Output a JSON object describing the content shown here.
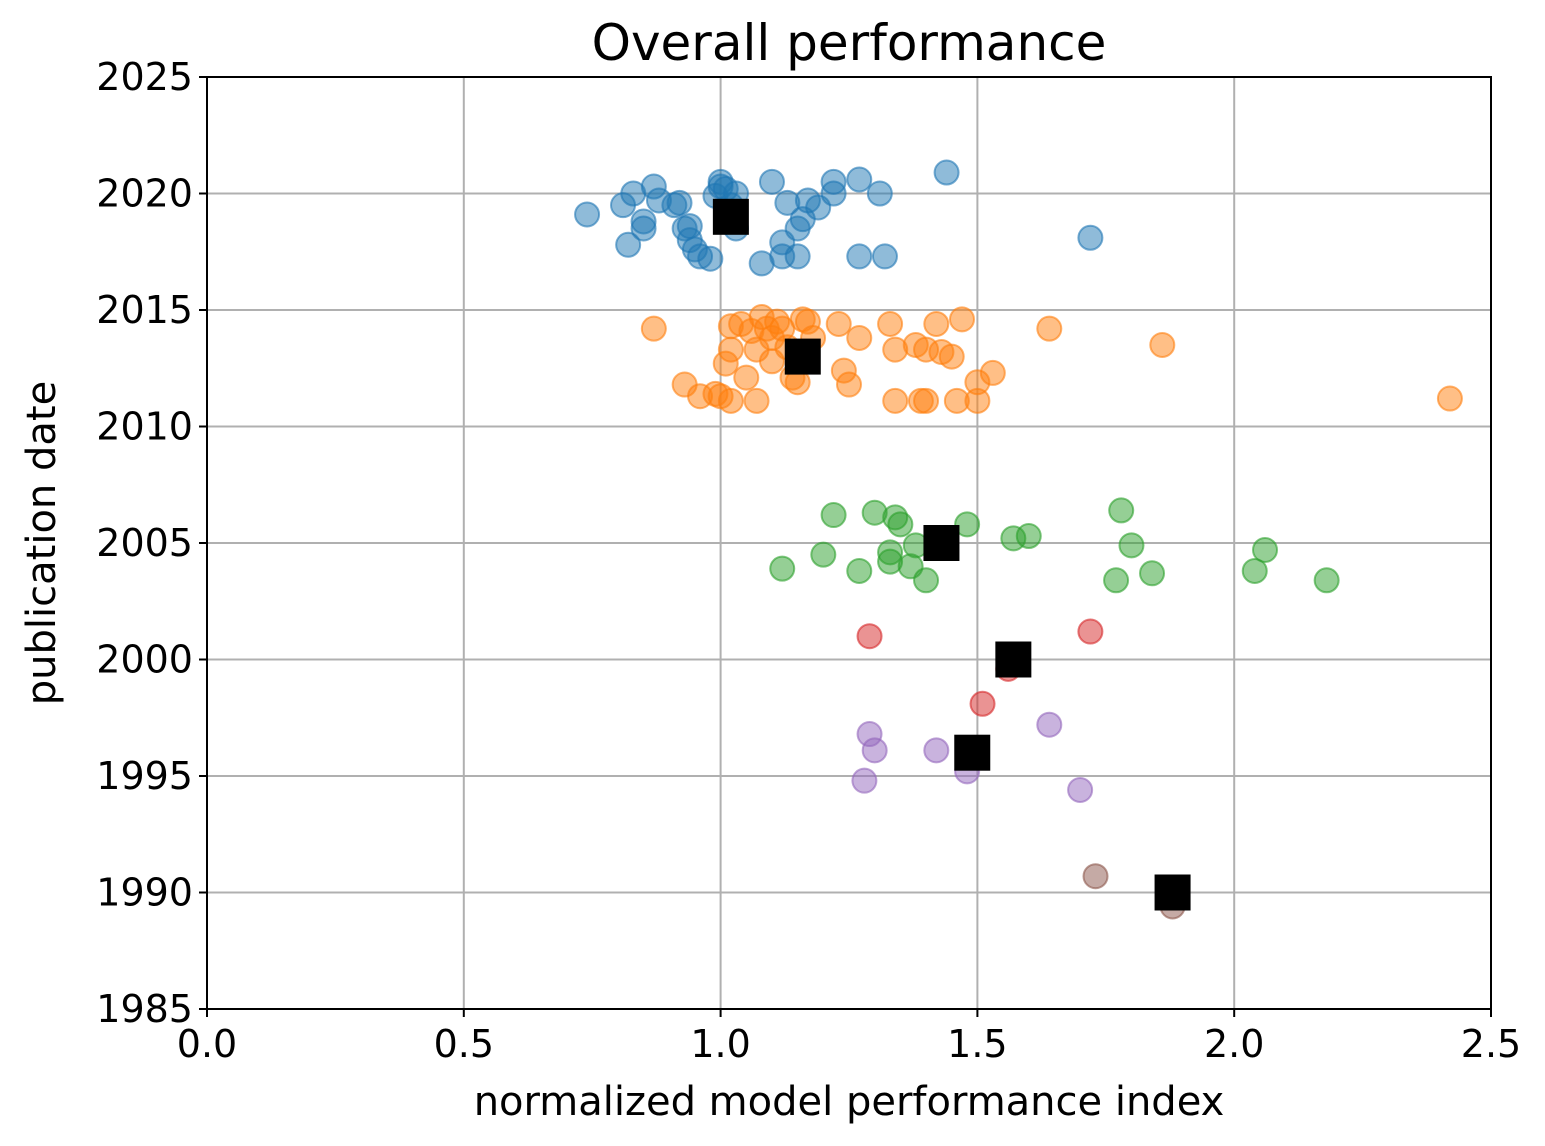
{
  "chart_data": {
    "type": "scatter",
    "title": "Overall performance",
    "xlabel": "normalized model performance index",
    "ylabel": "publication date",
    "xlim": [
      0.0,
      2.5
    ],
    "ylim": [
      1985,
      2025
    ],
    "xticks": [
      "0.0",
      "0.5",
      "1.0",
      "1.5",
      "2.0",
      "2.5"
    ],
    "yticks": [
      "1985",
      "1990",
      "1995",
      "2000",
      "2005",
      "2010",
      "2015",
      "2020",
      "2025"
    ],
    "grid": true,
    "legend": "none",
    "series": [
      {
        "color": "#1f77b4",
        "points": [
          [
            0.74,
            2019.1
          ],
          [
            0.81,
            2019.5
          ],
          [
            0.82,
            2017.8
          ],
          [
            0.83,
            2020.0
          ],
          [
            0.85,
            2018.8
          ],
          [
            0.85,
            2018.5
          ],
          [
            0.87,
            2020.3
          ],
          [
            0.88,
            2019.7
          ],
          [
            0.91,
            2019.5
          ],
          [
            0.92,
            2019.6
          ],
          [
            0.93,
            2018.5
          ],
          [
            0.94,
            2018.0
          ],
          [
            0.94,
            2018.6
          ],
          [
            0.95,
            2017.6
          ],
          [
            0.96,
            2017.3
          ],
          [
            0.98,
            2017.2
          ],
          [
            0.99,
            2019.9
          ],
          [
            1.0,
            2020.5
          ],
          [
            1.0,
            2020.3
          ],
          [
            1.01,
            2020.2
          ],
          [
            1.02,
            2019.5
          ],
          [
            1.03,
            2020.0
          ],
          [
            1.03,
            2018.5
          ],
          [
            1.08,
            2017.0
          ],
          [
            1.1,
            2020.5
          ],
          [
            1.12,
            2017.9
          ],
          [
            1.12,
            2017.3
          ],
          [
            1.13,
            2019.6
          ],
          [
            1.15,
            2017.3
          ],
          [
            1.15,
            2018.5
          ],
          [
            1.16,
            2018.9
          ],
          [
            1.17,
            2019.7
          ],
          [
            1.19,
            2019.4
          ],
          [
            1.22,
            2020.0
          ],
          [
            1.22,
            2020.5
          ],
          [
            1.27,
            2017.3
          ],
          [
            1.27,
            2020.6
          ],
          [
            1.31,
            2020.0
          ],
          [
            1.32,
            2017.3
          ],
          [
            1.44,
            2020.9
          ],
          [
            1.72,
            2018.1
          ]
        ]
      },
      {
        "color": "#ff7f0e",
        "points": [
          [
            0.87,
            2014.2
          ],
          [
            0.93,
            2011.8
          ],
          [
            0.96,
            2011.3
          ],
          [
            0.99,
            2011.4
          ],
          [
            1.0,
            2011.3
          ],
          [
            1.01,
            2012.7
          ],
          [
            1.02,
            2014.3
          ],
          [
            1.02,
            2013.3
          ],
          [
            1.02,
            2011.1
          ],
          [
            1.04,
            2014.4
          ],
          [
            1.05,
            2012.1
          ],
          [
            1.06,
            2014.1
          ],
          [
            1.07,
            2011.1
          ],
          [
            1.07,
            2013.3
          ],
          [
            1.08,
            2014.7
          ],
          [
            1.09,
            2014.2
          ],
          [
            1.1,
            2013.8
          ],
          [
            1.1,
            2012.8
          ],
          [
            1.11,
            2014.5
          ],
          [
            1.12,
            2014.2
          ],
          [
            1.13,
            2013.4
          ],
          [
            1.14,
            2012.1
          ],
          [
            1.15,
            2011.9
          ],
          [
            1.16,
            2014.6
          ],
          [
            1.17,
            2014.5
          ],
          [
            1.18,
            2013.8
          ],
          [
            1.23,
            2014.4
          ],
          [
            1.24,
            2012.4
          ],
          [
            1.25,
            2011.8
          ],
          [
            1.27,
            2013.8
          ],
          [
            1.33,
            2014.4
          ],
          [
            1.34,
            2013.3
          ],
          [
            1.34,
            2011.1
          ],
          [
            1.38,
            2013.5
          ],
          [
            1.39,
            2011.1
          ],
          [
            1.4,
            2011.1
          ],
          [
            1.4,
            2013.3
          ],
          [
            1.42,
            2014.4
          ],
          [
            1.43,
            2013.2
          ],
          [
            1.45,
            2013.0
          ],
          [
            1.46,
            2011.1
          ],
          [
            1.47,
            2014.6
          ],
          [
            1.5,
            2011.1
          ],
          [
            1.5,
            2011.9
          ],
          [
            1.53,
            2012.3
          ],
          [
            1.64,
            2014.2
          ],
          [
            1.86,
            2013.5
          ],
          [
            2.42,
            2011.2
          ]
        ]
      },
      {
        "color": "#2ca02c",
        "points": [
          [
            1.12,
            2003.9
          ],
          [
            1.2,
            2004.5
          ],
          [
            1.22,
            2006.2
          ],
          [
            1.27,
            2003.8
          ],
          [
            1.3,
            2006.3
          ],
          [
            1.33,
            2004.2
          ],
          [
            1.33,
            2004.6
          ],
          [
            1.34,
            2006.1
          ],
          [
            1.35,
            2005.8
          ],
          [
            1.37,
            2004.0
          ],
          [
            1.38,
            2004.9
          ],
          [
            1.4,
            2003.4
          ],
          [
            1.48,
            2005.8
          ],
          [
            1.57,
            2005.2
          ],
          [
            1.6,
            2005.3
          ],
          [
            1.77,
            2003.4
          ],
          [
            1.78,
            2006.4
          ],
          [
            1.8,
            2004.9
          ],
          [
            1.84,
            2003.7
          ],
          [
            2.04,
            2003.8
          ],
          [
            2.06,
            2004.7
          ],
          [
            2.18,
            2003.4
          ]
        ]
      },
      {
        "color": "#d62728",
        "points": [
          [
            1.29,
            2001.0
          ],
          [
            1.51,
            1998.1
          ],
          [
            1.56,
            1999.6
          ],
          [
            1.72,
            2001.2
          ]
        ]
      },
      {
        "color": "#9467bd",
        "points": [
          [
            1.28,
            1994.8
          ],
          [
            1.29,
            1996.8
          ],
          [
            1.3,
            1996.1
          ],
          [
            1.42,
            1996.1
          ],
          [
            1.48,
            1995.2
          ],
          [
            1.64,
            1997.2
          ],
          [
            1.7,
            1994.4
          ]
        ]
      },
      {
        "color": "#8c564b",
        "points": [
          [
            1.73,
            1990.7
          ],
          [
            1.88,
            1989.4
          ]
        ]
      }
    ],
    "means": {
      "color": "#000000",
      "marker": "square",
      "points": [
        [
          1.02,
          2019.0
        ],
        [
          1.16,
          2013.0
        ],
        [
          1.43,
          2005.0
        ],
        [
          1.57,
          2000.0
        ],
        [
          1.49,
          1996.0
        ],
        [
          1.88,
          1990.0
        ]
      ]
    }
  }
}
